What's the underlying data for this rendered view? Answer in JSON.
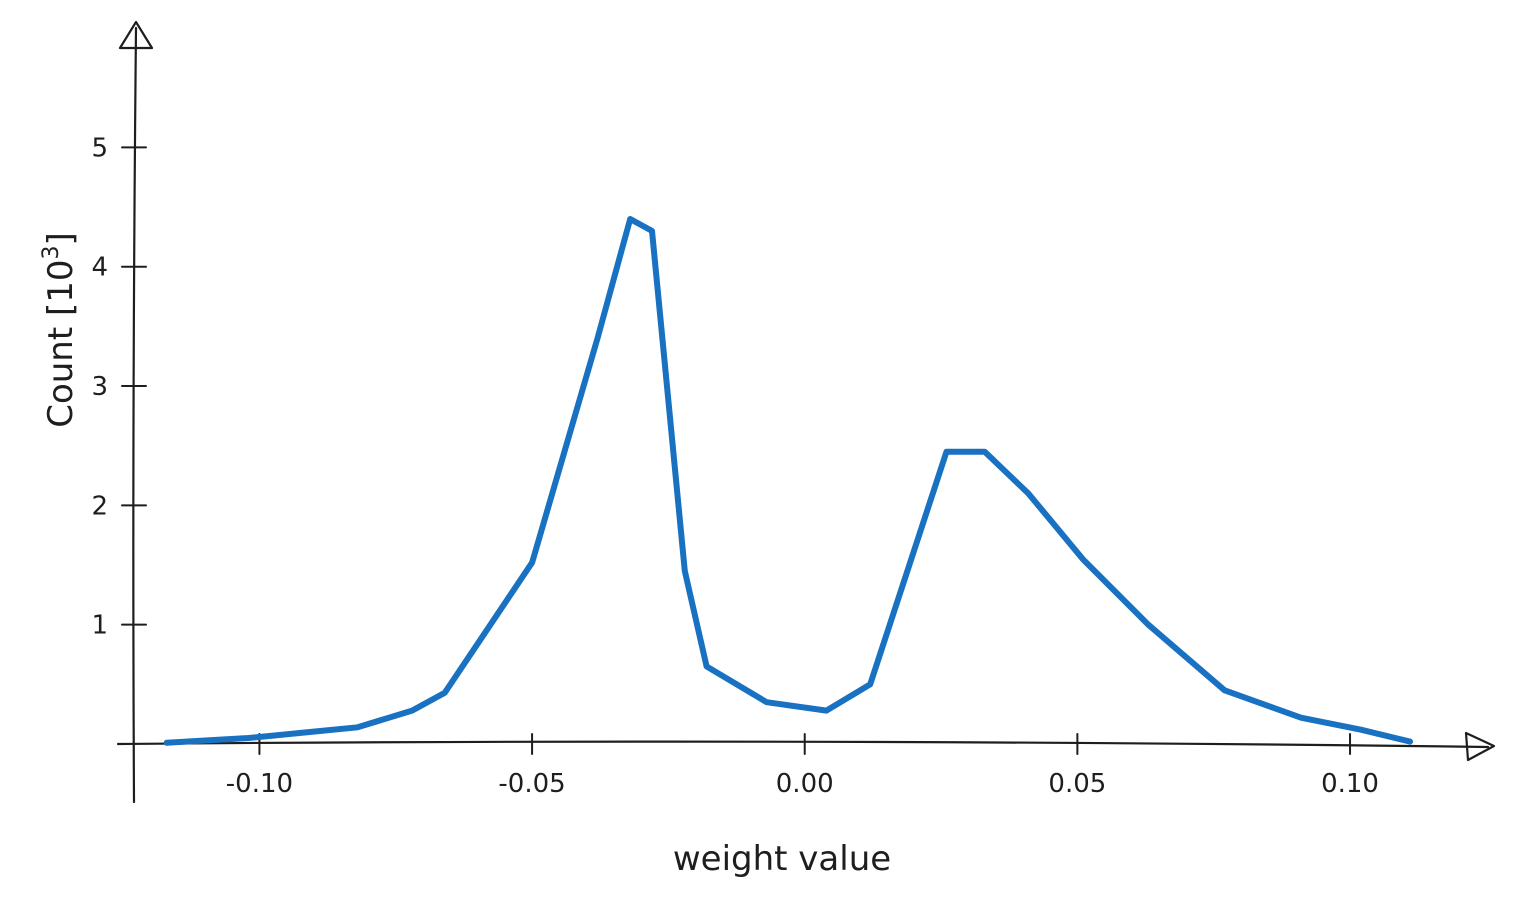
{
  "chart_data": {
    "type": "line",
    "title": "",
    "xlabel": "weight value",
    "ylabel_text": "Count [10",
    "ylabel_sup": "3",
    "ylabel_close": "]",
    "xlim": [
      -0.123,
      0.122
    ],
    "ylim": [
      0,
      5.9
    ],
    "grid": false,
    "legend": "none",
    "x_ticks": [
      {
        "value": -0.1,
        "label": "-0.10"
      },
      {
        "value": -0.05,
        "label": "-0.05"
      },
      {
        "value": 0.0,
        "label": "0.00"
      },
      {
        "value": 0.05,
        "label": "0.05"
      },
      {
        "value": 0.1,
        "label": "0.10"
      }
    ],
    "y_ticks": [
      {
        "value": 1,
        "label": "1"
      },
      {
        "value": 2,
        "label": "2"
      },
      {
        "value": 3,
        "label": "3"
      },
      {
        "value": 4,
        "label": "4"
      },
      {
        "value": 5,
        "label": "5"
      }
    ],
    "series": [
      {
        "color": "#1971c2",
        "x": [
          -0.117,
          -0.102,
          -0.091,
          -0.082,
          -0.072,
          -0.066,
          -0.05,
          -0.038,
          -0.032,
          -0.028,
          -0.022,
          -0.018,
          -0.007,
          0.004,
          0.012,
          0.026,
          0.033,
          0.041,
          0.051,
          0.063,
          0.077,
          0.091,
          0.102,
          0.111
        ],
        "y": [
          0.01,
          0.05,
          0.1,
          0.14,
          0.28,
          0.43,
          1.52,
          3.4,
          4.4,
          4.3,
          1.45,
          0.65,
          0.35,
          0.28,
          0.5,
          2.45,
          2.45,
          2.1,
          1.55,
          1.0,
          0.45,
          0.22,
          0.12,
          0.02
        ]
      }
    ]
  }
}
